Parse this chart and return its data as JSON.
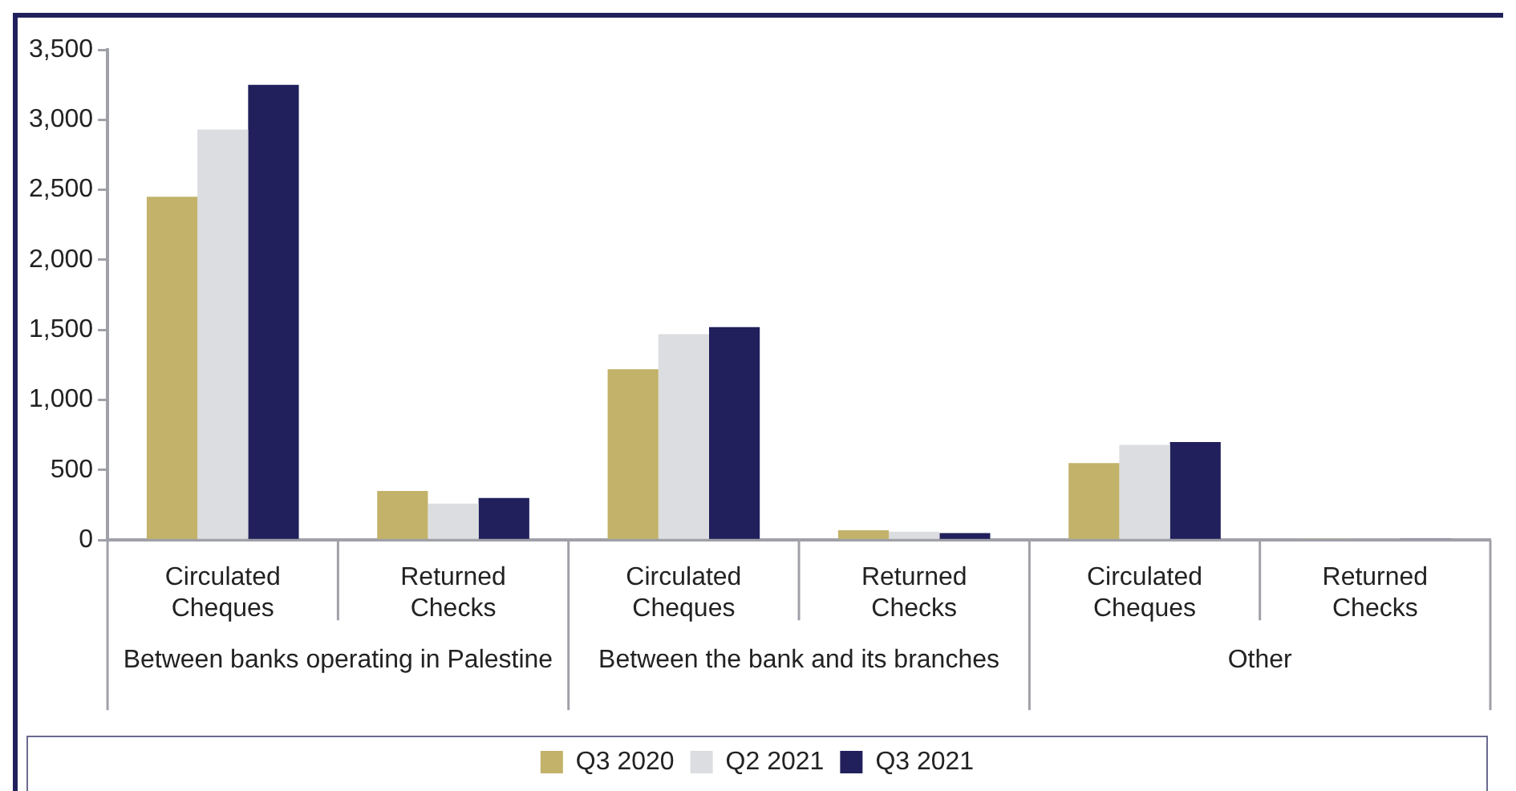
{
  "chart_data": {
    "type": "bar",
    "categories": [
      "Circulated Cheques",
      "Returned Checks",
      "Circulated Cheques",
      "Returned Checks",
      "Circulated Cheques",
      "Returned Checks"
    ],
    "series": [
      {
        "name": "Q3 2020",
        "color": "#c2b26a",
        "values": [
          2450,
          350,
          1220,
          70,
          550,
          10
        ]
      },
      {
        "name": "Q2 2021",
        "color": "#dcdde0",
        "values": [
          2930,
          260,
          1470,
          60,
          680,
          null
        ]
      },
      {
        "name": "Q3 2021",
        "color": "#21205c",
        "values": [
          3250,
          300,
          1520,
          50,
          700,
          10
        ]
      }
    ],
    "annotations": [
      "Between banks operating in Palestine",
      "Between the bank and its branches",
      "Other"
    ],
    "ylim": [
      0,
      3500
    ],
    "yticks": [
      {
        "value": 0,
        "label": "0"
      },
      {
        "value": 500,
        "label": "500"
      },
      {
        "value": 1000,
        "label": "1,000"
      },
      {
        "value": 1500,
        "label": "1,500"
      },
      {
        "value": 2000,
        "label": "2,000"
      },
      {
        "value": 2500,
        "label": "2,500"
      },
      {
        "value": 3000,
        "label": "3,000"
      },
      {
        "value": 3500,
        "label": "3,500"
      }
    ],
    "grid": false,
    "legend": "bottom"
  }
}
